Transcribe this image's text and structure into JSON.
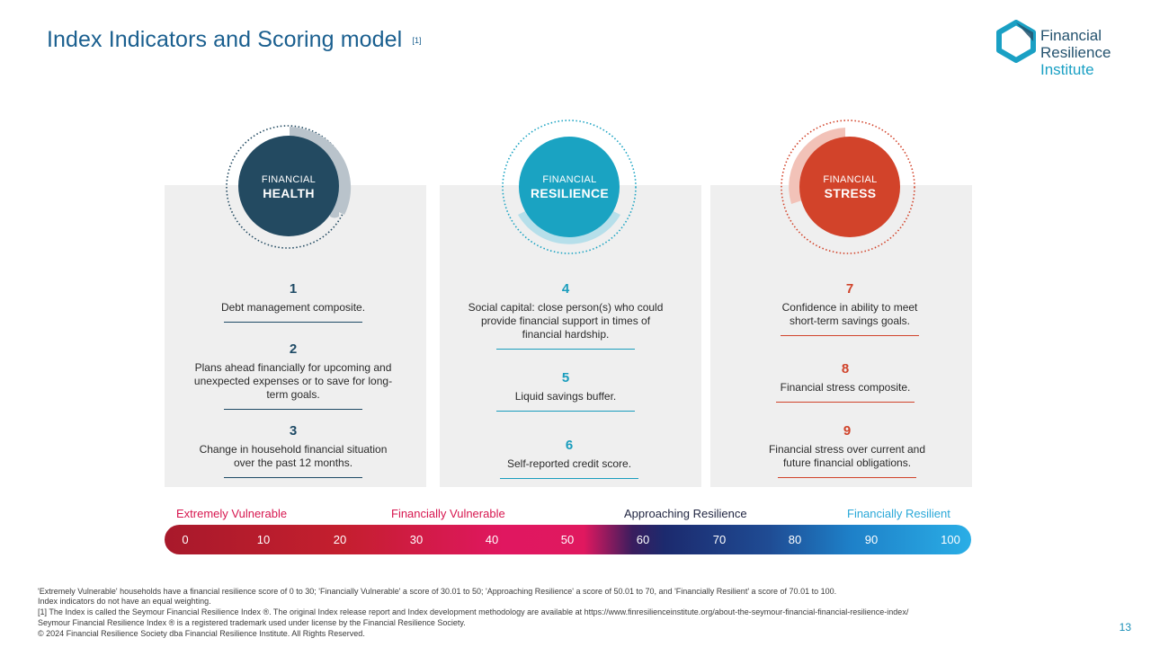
{
  "header": {
    "title": "Index Indicators and Scoring model",
    "ref": "[1]"
  },
  "logo": {
    "line1": "Financial",
    "line2": "Resilience",
    "line3": "Institute"
  },
  "pillars": [
    {
      "label_top": "FINANCIAL",
      "label_bottom": "HEALTH",
      "color": "#234a61",
      "indicators": [
        {
          "number": "1",
          "text": "Debt management composite."
        },
        {
          "number": "2",
          "text": "Plans ahead financially for upcoming and unexpected expenses or to save for long-term goals."
        },
        {
          "number": "3",
          "text": "Change in household financial situation over the past 12 months."
        }
      ]
    },
    {
      "label_top": "FINANCIAL",
      "label_bottom": "RESILIENCE",
      "color": "#1aa3c2",
      "indicators": [
        {
          "number": "4",
          "text": "Social capital: close person(s) who could provide financial support in times of financial hardship."
        },
        {
          "number": "5",
          "text": "Liquid savings buffer."
        },
        {
          "number": "6",
          "text": "Self-reported credit score."
        }
      ]
    },
    {
      "label_top": "FINANCIAL",
      "label_bottom": "STRESS",
      "color": "#d2432a",
      "indicators": [
        {
          "number": "7",
          "text": "Confidence in ability to meet short-term savings goals."
        },
        {
          "number": "8",
          "text": "Financial stress composite."
        },
        {
          "number": "9",
          "text": "Financial stress over current and future financial obligations."
        }
      ]
    }
  ],
  "scale": {
    "categories": [
      {
        "label": "Extremely Vulnerable",
        "color": "#d7164f"
      },
      {
        "label": "Financially Vulnerable",
        "color": "#d7164f"
      },
      {
        "label": "Approaching Resilience",
        "color": "#1f2440"
      },
      {
        "label": "Financially Resilient",
        "color": "#2aa8d8"
      }
    ],
    "ticks": [
      "0",
      "10",
      "20",
      "30",
      "40",
      "50",
      "60",
      "70",
      "80",
      "90",
      "100"
    ]
  },
  "footnotes": {
    "line1": "'Extremely Vulnerable' households have a financial resilience score of 0 to 30; 'Financially Vulnerable' a score of 30.01 to 50; 'Approaching Resilience' a score of 50.01 to 70, and 'Financially Resilient' a score of 70.01 to 100.",
    "line2": "Index indicators do not have an equal weighting.",
    "line3": "[1] The Index is called the Seymour Financial Resilience Index ®. The original Index release report and Index development methodology are available at https://www.finresilienceinstitute.org/about-the-seymour-financial-financial-resilience-index/",
    "line4": "Seymour Financial Resilience Index ® is a registered trademark used under license by the Financial Resilience Society.",
    "line5": "© 2024 Financial Resilience Society dba Financial Resilience Institute. All Rights Reserved."
  },
  "page_number": "13"
}
